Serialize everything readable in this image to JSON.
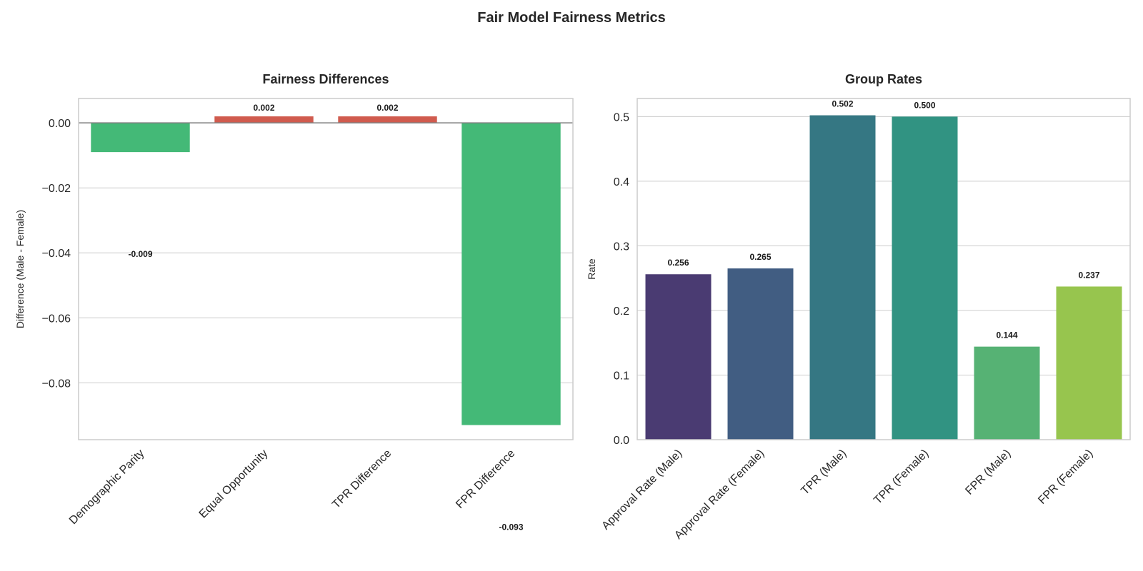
{
  "suptitle": "Fair Model Fairness Metrics",
  "chart_data": [
    {
      "type": "bar",
      "title": "Fairness Differences",
      "xlabel": "",
      "ylabel": "Difference (Male - Female)",
      "categories": [
        "Demographic Parity",
        "Equal Opportunity",
        "TPR Difference",
        "FPR Difference"
      ],
      "values": [
        -0.009,
        0.002,
        0.002,
        -0.093
      ],
      "data_labels": [
        "-0.009",
        "0.002",
        "0.002",
        "-0.093"
      ],
      "ylim": [
        -0.0975,
        0.0075
      ],
      "yticks": [
        0.0,
        -0.02,
        -0.04,
        -0.06,
        -0.08
      ],
      "ytick_labels": [
        "0.00",
        "−0.02",
        "−0.04",
        "−0.06",
        "−0.08"
      ],
      "bar_colors": [
        "#44b977",
        "#d05b4e",
        "#d05b4e",
        "#44b977"
      ],
      "zero_line": true,
      "grid": "horizontal"
    },
    {
      "type": "bar",
      "title": "Group Rates",
      "xlabel": "",
      "ylabel": "Rate",
      "categories": [
        "Approval Rate (Male)",
        "Approval Rate (Female)",
        "TPR (Male)",
        "TPR (Female)",
        "FPR (Male)",
        "FPR (Female)"
      ],
      "values": [
        0.256,
        0.265,
        0.502,
        0.5,
        0.144,
        0.237
      ],
      "data_labels": [
        "0.256",
        "0.265",
        "0.502",
        "0.500",
        "0.144",
        "0.237"
      ],
      "ylim": [
        0,
        0.528
      ],
      "yticks": [
        0.0,
        0.1,
        0.2,
        0.3,
        0.4,
        0.5
      ],
      "ytick_labels": [
        "0.0",
        "0.1",
        "0.2",
        "0.3",
        "0.4",
        "0.5"
      ],
      "bar_colors": [
        "#4a3b72",
        "#415d82",
        "#357783",
        "#319382",
        "#56b274",
        "#97c54e"
      ],
      "grid": "horizontal"
    }
  ]
}
